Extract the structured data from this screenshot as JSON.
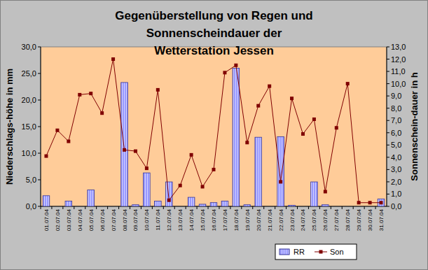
{
  "chart_data": {
    "type": "bar",
    "title": "Gegenüberstellung von Regen und Sonnenscheindauer der Wetterstation Jessen",
    "y_label": "Niederschlags-höhe in mm",
    "y2_label": "Sonnenschein-dauer in h",
    "categories": [
      "01.07.04",
      "02.07.04",
      "03.07.04",
      "04.07.04",
      "05.07.04",
      "06.07.04",
      "07.07.04",
      "08.07.04",
      "09.07.04",
      "10.07.04",
      "11.07.04",
      "12.07.04",
      "13.07.04",
      "14.07.04",
      "15.07.04",
      "16.07.04",
      "17.07.04",
      "18.07.04",
      "19.07.04",
      "20.07.04",
      "21.07.04",
      "22.07.04",
      "23.07.04",
      "24.07.04",
      "25.07.04",
      "26.07.04",
      "27.07.04",
      "28.07.04",
      "29.07.04",
      "30.07.04",
      "31.07.04"
    ],
    "series": [
      {
        "name": "RR",
        "type": "bar",
        "color": "#9999ff",
        "values": [
          2.0,
          0,
          1.0,
          0,
          3.1,
          0,
          0,
          23.3,
          0.3,
          6.3,
          1.0,
          4.6,
          0,
          1.7,
          0.4,
          0.7,
          1.0,
          26.0,
          0.3,
          13.0,
          0,
          13.1,
          0.2,
          0,
          4.6,
          0.3,
          0,
          0,
          0,
          0,
          1.4
        ]
      },
      {
        "name": "Son",
        "type": "line",
        "color": "#800000",
        "marker": "square",
        "axis": "y2",
        "values": [
          4.1,
          6.2,
          5.3,
          9.1,
          9.2,
          7.6,
          12.0,
          4.6,
          4.5,
          3.1,
          9.5,
          0.5,
          1.7,
          4.2,
          1.6,
          3.0,
          10.9,
          11.5,
          5.2,
          8.2,
          9.8,
          2.0,
          8.8,
          5.9,
          7.1,
          1.2,
          6.4,
          10.0,
          0.3,
          0.3,
          0.3
        ]
      }
    ],
    "ylim": [
      0,
      30
    ],
    "yticks": [
      {
        "value": 0,
        "label": "0,0"
      },
      {
        "value": 5,
        "label": "5,0"
      },
      {
        "value": 10,
        "label": "10,0"
      },
      {
        "value": 15,
        "label": "15,0"
      },
      {
        "value": 20,
        "label": "20,0"
      },
      {
        "value": 25,
        "label": "25,0"
      },
      {
        "value": 30,
        "label": "30,0"
      }
    ],
    "y2lim": [
      0,
      13
    ],
    "y2ticks": [
      {
        "value": 0,
        "label": "0,0"
      },
      {
        "value": 1,
        "label": "1,0"
      },
      {
        "value": 2,
        "label": "2,0"
      },
      {
        "value": 3,
        "label": "3,0"
      },
      {
        "value": 4,
        "label": "4,0"
      },
      {
        "value": 5,
        "label": "5,0"
      },
      {
        "value": 6,
        "label": "6,0"
      },
      {
        "value": 7,
        "label": "7,0"
      },
      {
        "value": 8,
        "label": "8,0"
      },
      {
        "value": 9,
        "label": "9,0"
      },
      {
        "value": 10,
        "label": "10,0"
      },
      {
        "value": 11,
        "label": "11,0"
      },
      {
        "value": 12,
        "label": "12,0"
      },
      {
        "value": 13,
        "label": "13,0"
      }
    ],
    "grid": false,
    "legend": "bottom-right"
  }
}
